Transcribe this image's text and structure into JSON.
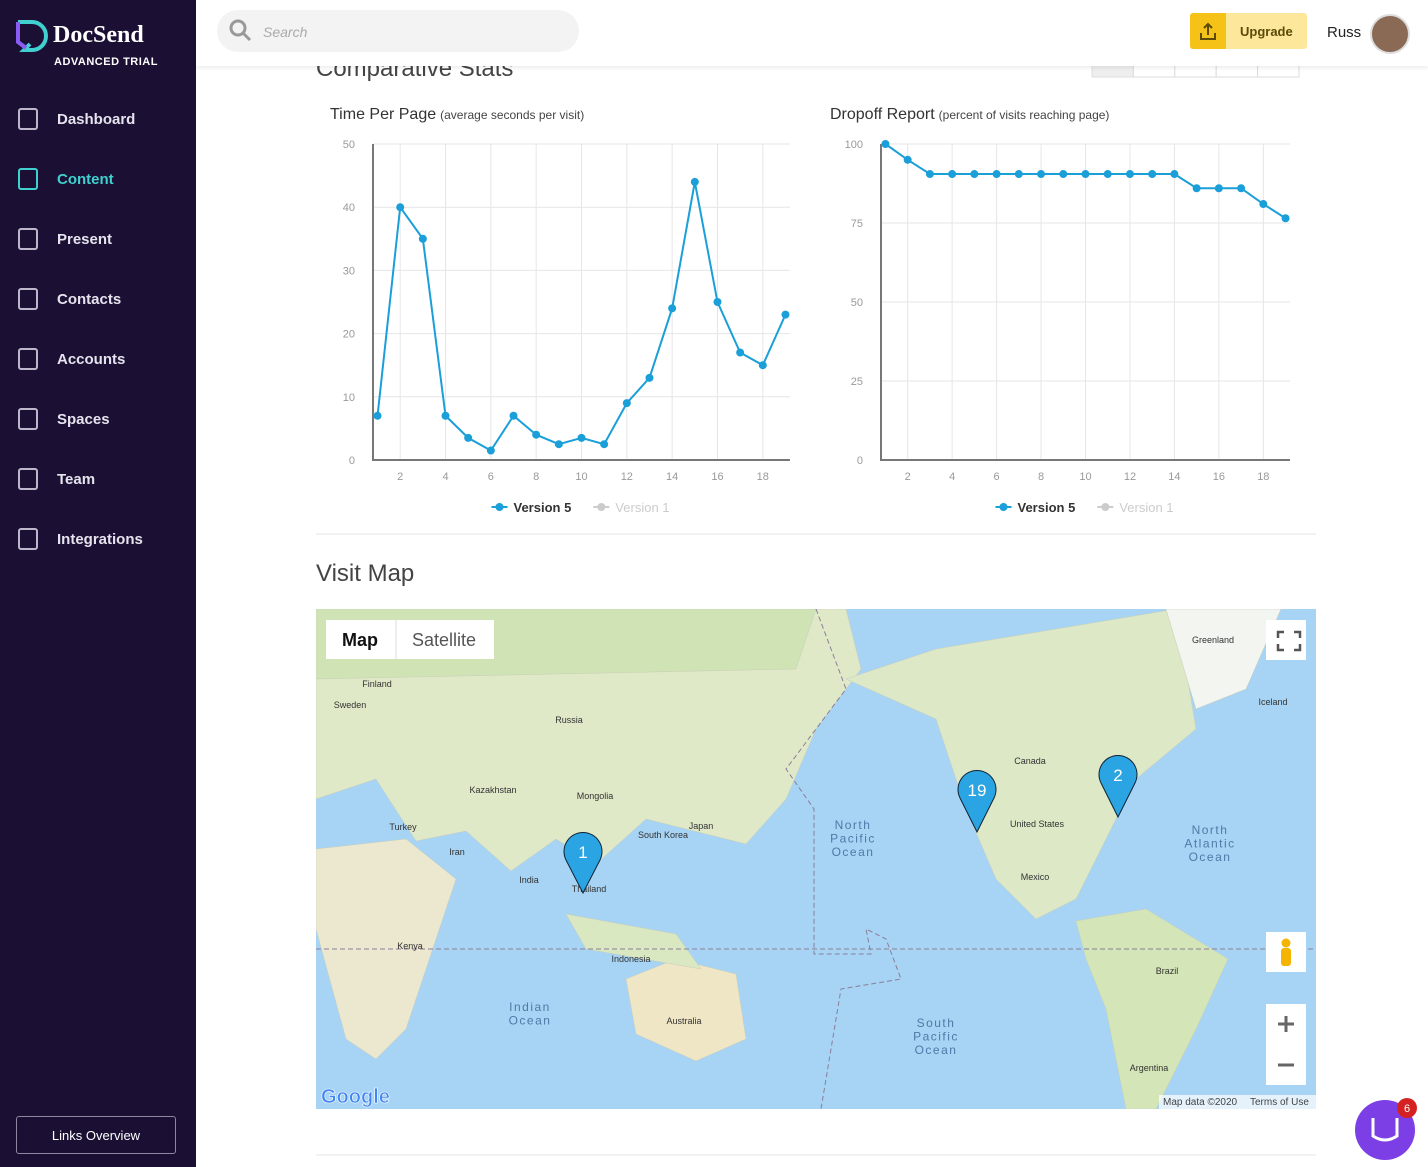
{
  "sidebar": {
    "brand": "DocSend",
    "plan": "ADVANCED TRIAL",
    "nav": [
      "Dashboard",
      "Content",
      "Present",
      "Contacts",
      "Accounts",
      "Spaces",
      "Team",
      "Integrations"
    ],
    "active": "Content",
    "footer_button": "Links Overview"
  },
  "header": {
    "search_placeholder": "Search",
    "upgrade": "Upgrade",
    "user": "Russ"
  },
  "sections": {
    "stats_title": "Comparative Stats",
    "map_title": "Visit Map"
  },
  "chart_data": [
    {
      "type": "line",
      "title": "Time Per Page",
      "subtitle": "(average seconds per visit)",
      "x": [
        1,
        2,
        3,
        4,
        5,
        6,
        7,
        8,
        9,
        10,
        11,
        12,
        13,
        14,
        15,
        16,
        17,
        18,
        19
      ],
      "series": [
        {
          "name": "Version 5",
          "color": "#1a9fd9",
          "values": [
            7,
            40,
            35,
            7,
            3.5,
            1.5,
            7,
            4,
            2.5,
            3.5,
            2.5,
            9,
            13,
            24,
            44,
            25,
            17,
            15,
            23
          ]
        },
        {
          "name": "Version 1",
          "color": "#cccccc",
          "visible": false
        }
      ],
      "xlim": [
        0.8,
        19.2
      ],
      "xticks": [
        2,
        4,
        6,
        8,
        10,
        12,
        14,
        16,
        18
      ],
      "ylim": [
        0,
        50
      ],
      "yticks": [
        0,
        10,
        20,
        30,
        40,
        50
      ],
      "grid": true
    },
    {
      "type": "line",
      "title": "Dropoff Report",
      "subtitle": "(percent of visits reaching page)",
      "x": [
        1,
        2,
        3,
        4,
        5,
        6,
        7,
        8,
        9,
        10,
        11,
        12,
        13,
        14,
        15,
        16,
        17,
        18,
        19
      ],
      "series": [
        {
          "name": "Version 5",
          "color": "#1a9fd9",
          "values": [
            100,
            95,
            90.5,
            90.5,
            90.5,
            90.5,
            90.5,
            90.5,
            90.5,
            90.5,
            90.5,
            90.5,
            90.5,
            90.5,
            86,
            86,
            86,
            81,
            76.5
          ]
        },
        {
          "name": "Version 1",
          "color": "#cccccc",
          "visible": false
        }
      ],
      "xlim": [
        0.8,
        19.2
      ],
      "xticks": [
        2,
        4,
        6,
        8,
        10,
        12,
        14,
        16,
        18
      ],
      "ylim": [
        0,
        100
      ],
      "yticks": [
        0,
        25,
        50,
        75,
        100
      ],
      "grid": true
    }
  ],
  "map": {
    "tabs": [
      "Map",
      "Satellite"
    ],
    "active_tab": "Map",
    "labels": [
      "Finland",
      "Sweden",
      "Russia",
      "Kazakhstan",
      "Mongolia",
      "Turkey",
      "Iran",
      "India",
      "Thailand",
      "Japan",
      "South Korea",
      "Indonesia",
      "Australia",
      "Canada",
      "United States",
      "Mexico",
      "Brazil",
      "Greenland",
      "Kenya",
      "Argentina",
      "Iceland"
    ],
    "oceans": [
      "North Pacific Ocean",
      "North Atlantic Ocean",
      "Indian Ocean",
      "South Pacific Ocean"
    ],
    "markers": [
      "1",
      "19",
      "2"
    ],
    "attribution": "Map data ©2020",
    "terms": "Terms of Use",
    "logo": "Google"
  },
  "chat": {
    "badge": "6"
  }
}
